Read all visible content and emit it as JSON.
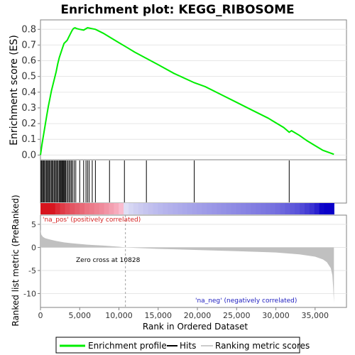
{
  "chart_data": {
    "type": "line",
    "title": "Enrichment plot: KEGG_RIBOSOME",
    "xlabel": "Rank in Ordered Dataset",
    "ylabel_top": "Enrichment score (ES)",
    "ylabel_bottom": "Ranked list metric (PreRanked)",
    "xlim": [
      0,
      39000
    ],
    "x_ticks": [
      0,
      5000,
      10000,
      15000,
      20000,
      25000,
      30000,
      35000
    ],
    "x_tick_labels": [
      "0",
      "5,000",
      "10,000",
      "15,000",
      "20,000",
      "25,000",
      "30,000",
      "35,000"
    ],
    "es_ylim": [
      -0.03,
      0.86
    ],
    "es_ticks": [
      0.0,
      0.1,
      0.2,
      0.3,
      0.4,
      0.5,
      0.6,
      0.7,
      0.8
    ],
    "es_tick_labels": [
      "0.0",
      "0.1",
      "0.2",
      "0.3",
      "0.4",
      "0.5",
      "0.6",
      "0.7",
      "0.8"
    ],
    "metric_ylim": [
      -13,
      7
    ],
    "metric_ticks": [
      5,
      0,
      -5,
      -10
    ],
    "metric_tick_labels": [
      "5",
      "0",
      "-5",
      "-10"
    ],
    "enrichment_profile": {
      "x": [
        0,
        200,
        400,
        600,
        800,
        1000,
        1200,
        1400,
        1600,
        1800,
        2000,
        2200,
        2400,
        2600,
        2800,
        3000,
        3200,
        3400,
        3600,
        3800,
        4000,
        4200,
        4400,
        4600,
        5000,
        5500,
        6000,
        6500,
        7000,
        8000,
        9000,
        10000,
        11000,
        12000,
        13500,
        15000,
        17000,
        19600,
        21000,
        23000,
        25000,
        27000,
        29000,
        31000,
        31700,
        32000,
        33000,
        34000,
        35000,
        36000,
        37400
      ],
      "y": [
        0.0,
        0.07,
        0.13,
        0.19,
        0.25,
        0.31,
        0.36,
        0.41,
        0.45,
        0.49,
        0.53,
        0.58,
        0.62,
        0.65,
        0.68,
        0.71,
        0.72,
        0.73,
        0.75,
        0.77,
        0.79,
        0.805,
        0.81,
        0.805,
        0.8,
        0.795,
        0.81,
        0.805,
        0.8,
        0.775,
        0.745,
        0.715,
        0.685,
        0.655,
        0.615,
        0.575,
        0.52,
        0.46,
        0.435,
        0.385,
        0.335,
        0.285,
        0.235,
        0.175,
        0.145,
        0.155,
        0.125,
        0.09,
        0.06,
        0.03,
        0.005
      ]
    },
    "hits": [
      80,
      180,
      300,
      420,
      520,
      650,
      780,
      900,
      1000,
      1120,
      1250,
      1380,
      1500,
      1620,
      1750,
      1880,
      2000,
      2120,
      2250,
      2380,
      2500,
      2600,
      2700,
      2800,
      2900,
      3000,
      3100,
      3200,
      3350,
      3500,
      3650,
      3800,
      3950,
      4100,
      4300,
      4500,
      5000,
      5500,
      5800,
      6000,
      6200,
      6600,
      7000,
      8800,
      10700,
      13500,
      19600,
      31700
    ],
    "ranked_metric": {
      "x": [
        0,
        100,
        300,
        600,
        1000,
        1500,
        2000,
        3000,
        4000,
        5000,
        6000,
        8000,
        10000,
        10828,
        12000,
        15000,
        20000,
        25000,
        30000,
        33000,
        35000,
        36000,
        36500,
        37000,
        37200,
        37300,
        37400
      ],
      "y": [
        4.0,
        2.8,
        2.3,
        2.0,
        1.8,
        1.6,
        1.4,
        1.1,
        0.9,
        0.75,
        0.6,
        0.4,
        0.15,
        0.0,
        -0.1,
        -0.3,
        -0.55,
        -0.8,
        -1.1,
        -1.5,
        -2.0,
        -2.6,
        -3.2,
        -4.5,
        -6.0,
        -8.5,
        -12.0
      ]
    },
    "zero_cross_x": 10828,
    "annotations": {
      "pos_label": "'na_pos' (positively correlated)",
      "neg_label": "'na_neg' (negatively correlated)",
      "zero_cross_label": "Zero cross at 10828"
    },
    "legend": {
      "placement": "bottom",
      "items": [
        {
          "label": "Enrichment profile",
          "color": "#00ee00"
        },
        {
          "label": "Hits",
          "color": "#000000"
        },
        {
          "label": "Ranking metric scores",
          "color": "#cccccc"
        }
      ]
    },
    "colors": {
      "profile": "#00ee00",
      "pos_text": "#d42020",
      "neg_text": "#2020c0",
      "metric_fill": "#c0c0c0"
    }
  }
}
